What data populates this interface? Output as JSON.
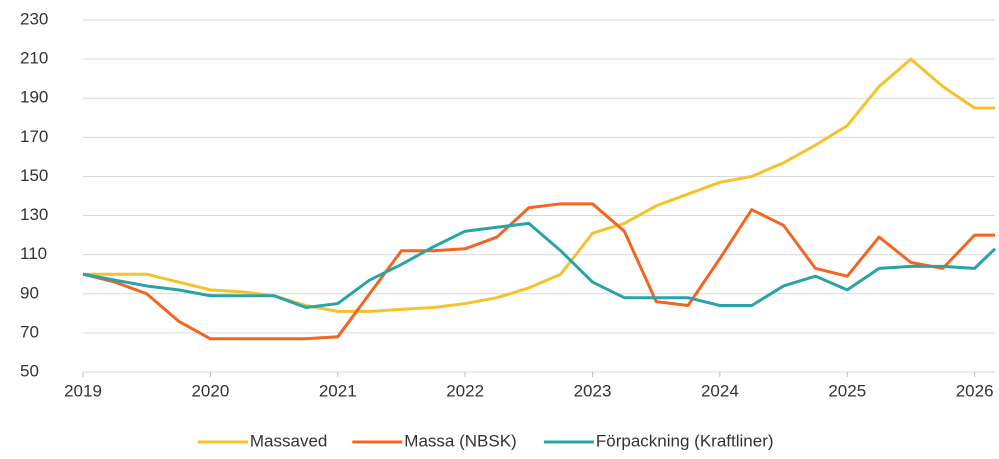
{
  "chart_data": {
    "type": "line",
    "x": [
      2019,
      2019.25,
      2019.5,
      2019.75,
      2020,
      2020.25,
      2020.5,
      2020.75,
      2021,
      2021.25,
      2021.5,
      2021.75,
      2022,
      2022.25,
      2022.5,
      2022.75,
      2023,
      2023.25,
      2023.5,
      2023.75,
      2024,
      2024.25,
      2024.5,
      2024.75,
      2025,
      2025.25,
      2025.5,
      2025.75,
      2026,
      2026.16
    ],
    "series": [
      {
        "name": "Massaved",
        "color": "#f5c22b",
        "values": [
          100,
          100,
          100,
          96,
          92,
          91,
          89,
          84,
          81,
          81,
          82,
          83,
          85,
          88,
          93,
          100,
          121,
          126,
          135,
          141,
          147,
          150,
          157,
          166,
          176,
          196,
          210,
          196,
          185,
          185
        ]
      },
      {
        "name": "Massa (NBSK)",
        "color": "#f26522",
        "values": [
          100,
          96,
          90,
          76,
          67,
          67,
          67,
          67,
          68,
          90,
          112,
          112,
          113,
          119,
          134,
          136,
          136,
          122,
          86,
          84,
          108,
          133,
          125,
          103,
          99,
          119,
          106,
          103,
          120,
          120
        ]
      },
      {
        "name": "Förpackning (Kraftliner)",
        "color": "#2aa3a6",
        "values": [
          100,
          97,
          94,
          92,
          89,
          89,
          89,
          83,
          85,
          97,
          105,
          114,
          122,
          124,
          126,
          112,
          96,
          88,
          88,
          88,
          84,
          84,
          94,
          99,
          92,
          103,
          104,
          104,
          103,
          113
        ]
      }
    ],
    "xlim": [
      2019,
      2026.16
    ],
    "xticks": [
      2019,
      2020,
      2021,
      2022,
      2023,
      2024,
      2025,
      2026
    ],
    "ylim": [
      50,
      230
    ],
    "yticks": [
      50,
      70,
      90,
      110,
      130,
      150,
      170,
      190,
      210,
      230
    ],
    "grid": true,
    "legend": "bottom"
  }
}
